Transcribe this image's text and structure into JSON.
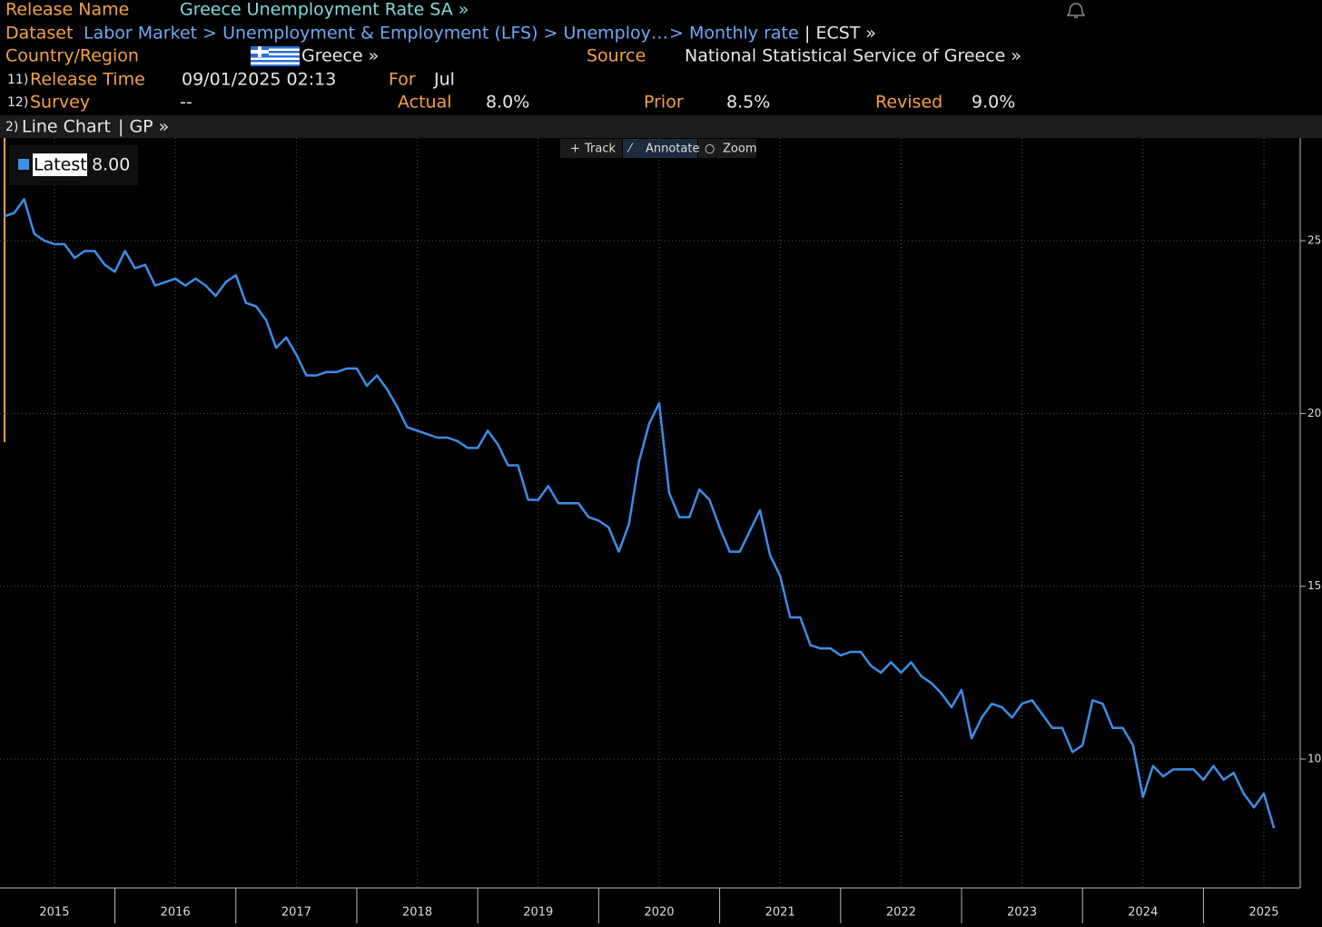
{
  "header": {
    "release_name_label": "Release Name",
    "release_name": "Greece Unemployment Rate SA »",
    "dataset_label": "Dataset",
    "dataset_path": "Labor Market > Unemployment & Employment (LFS) > Unemploy…",
    "dataset_last": "> Monthly rate",
    "dataset_code": "| ECST »",
    "country_label": "Country/Region",
    "country": "Greece »",
    "source_label": "Source",
    "source": "National Statistical Service of Greece »",
    "row11_num": "11)",
    "release_time_label": "Release Time",
    "release_time": "09/01/2025 02:13",
    "for_label": "For",
    "for_value": "Jul",
    "row12_num": "12)",
    "survey_label": "Survey",
    "survey": "--",
    "actual_label": "Actual",
    "actual": "8.0%",
    "prior_label": "Prior",
    "prior": "8.5%",
    "revised_label": "Revised",
    "revised": "9.0%",
    "toolbar_num": "2)",
    "toolbar_title": "Line Chart",
    "toolbar_code": "| GP »",
    "tools": [
      "Track",
      "Annotate",
      "Zoom"
    ]
  },
  "chart_data": {
    "type": "line",
    "legend_value_label": "8.00",
    "x": [
      2015.083,
      2015.167,
      2015.25,
      2015.333,
      2015.417,
      2015.5,
      2015.583,
      2015.667,
      2015.75,
      2015.833,
      2015.917,
      2016,
      2016.083,
      2016.167,
      2016.25,
      2016.333,
      2016.417,
      2016.5,
      2016.583,
      2016.667,
      2016.75,
      2016.833,
      2016.917,
      2017,
      2017.083,
      2017.167,
      2017.25,
      2017.333,
      2017.417,
      2017.5,
      2017.583,
      2017.667,
      2017.75,
      2017.833,
      2017.917,
      2018,
      2018.083,
      2018.167,
      2018.25,
      2018.333,
      2018.417,
      2018.5,
      2018.583,
      2018.667,
      2018.75,
      2018.833,
      2018.917,
      2019,
      2019.083,
      2019.167,
      2019.25,
      2019.333,
      2019.417,
      2019.5,
      2019.583,
      2019.667,
      2019.75,
      2019.833,
      2019.917,
      2020,
      2020.083,
      2020.167,
      2020.25,
      2020.333,
      2020.417,
      2020.5,
      2020.583,
      2020.667,
      2020.75,
      2020.833,
      2020.917,
      2021,
      2021.083,
      2021.167,
      2021.25,
      2021.333,
      2021.417,
      2021.5,
      2021.583,
      2021.667,
      2021.75,
      2021.833,
      2021.917,
      2022,
      2022.083,
      2022.167,
      2022.25,
      2022.333,
      2022.417,
      2022.5,
      2022.583,
      2022.667,
      2022.75,
      2022.833,
      2022.917,
      2023,
      2023.083,
      2023.167,
      2023.25,
      2023.333,
      2023.417,
      2023.5,
      2023.583,
      2023.667,
      2023.75,
      2023.833,
      2023.917,
      2024,
      2024.083,
      2024.167,
      2024.25,
      2024.333,
      2024.417,
      2024.5,
      2024.583,
      2024.667,
      2024.75,
      2024.833,
      2024.917,
      2025,
      2025.083,
      2025.167,
      2025.25,
      2025.333,
      2025.417,
      2025.5,
      2025.583
    ],
    "series": [
      {
        "name": "Latest",
        "color": "#3d8ee6",
        "values": [
          25.7,
          25.8,
          26.2,
          25.2,
          25.0,
          24.9,
          24.9,
          24.5,
          24.7,
          24.7,
          24.3,
          24.1,
          24.7,
          24.2,
          24.3,
          23.7,
          23.8,
          23.9,
          23.7,
          23.9,
          23.7,
          23.4,
          23.8,
          24.0,
          23.2,
          23.1,
          22.7,
          21.9,
          22.2,
          21.7,
          21.1,
          21.1,
          21.2,
          21.2,
          21.3,
          21.3,
          20.8,
          21.1,
          20.7,
          20.2,
          19.6,
          19.5,
          19.4,
          19.3,
          19.3,
          19.2,
          19.0,
          19.0,
          19.5,
          19.1,
          18.5,
          18.5,
          17.5,
          17.5,
          17.9,
          17.4,
          17.4,
          17.4,
          17.0,
          16.9,
          16.7,
          16.0,
          16.8,
          18.6,
          19.7,
          20.3,
          17.7,
          17.0,
          17.0,
          17.8,
          17.5,
          16.7,
          16.0,
          16.0,
          16.6,
          17.2,
          15.9,
          15.3,
          14.1,
          14.1,
          13.3,
          13.2,
          13.2,
          13.0,
          13.1,
          13.1,
          12.7,
          12.5,
          12.8,
          12.5,
          12.8,
          12.4,
          12.2,
          11.9,
          11.5,
          12.0,
          10.6,
          11.2,
          11.6,
          11.5,
          11.2,
          11.6,
          11.7,
          11.3,
          10.9,
          10.9,
          10.2,
          10.4,
          11.7,
          11.6,
          10.9,
          10.9,
          10.4,
          8.9,
          9.8,
          9.5,
          9.7,
          9.7,
          9.7,
          9.4,
          9.8,
          9.4,
          9.6,
          9.0,
          8.6,
          9.0,
          8.0
        ]
      }
    ],
    "xlim": [
      2015.05,
      2025.8
    ],
    "xticks": [
      {
        "value": 2015.5,
        "label": "2015"
      },
      {
        "value": 2016.5,
        "label": "2016"
      },
      {
        "value": 2017.5,
        "label": "2017"
      },
      {
        "value": 2018.5,
        "label": "2018"
      },
      {
        "value": 2019.5,
        "label": "2019"
      },
      {
        "value": 2020.5,
        "label": "2020"
      },
      {
        "value": 2021.5,
        "label": "2021"
      },
      {
        "value": 2022.5,
        "label": "2022"
      },
      {
        "value": 2023.5,
        "label": "2023"
      },
      {
        "value": 2024.5,
        "label": "2024"
      },
      {
        "value": 2025.5,
        "label": "2025"
      }
    ],
    "x_separators": [
      2016,
      2017,
      2018,
      2019,
      2020,
      2021,
      2022,
      2023,
      2024,
      2025
    ],
    "ylim": [
      6.27,
      27.97
    ],
    "yticks": [
      10,
      15,
      20,
      25
    ],
    "grid": true
  }
}
